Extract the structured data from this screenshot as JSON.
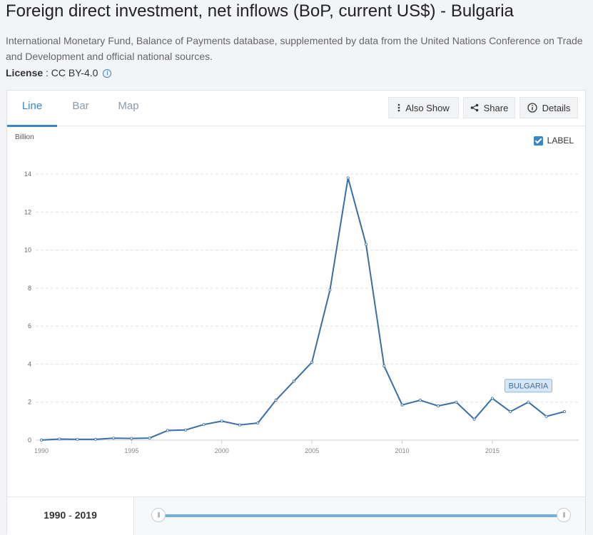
{
  "page": {
    "title": "Foreign direct investment, net inflows (BoP, current US$) - Bulgaria",
    "source": "International Monetary Fund, Balance of Payments database, supplemented by data from the United Nations Conference on Trade and Development and official national sources.",
    "license_label": "License",
    "license_value": " : CC BY-4.0"
  },
  "tabs": [
    "Line",
    "Bar",
    "Map"
  ],
  "active_tab": "Line",
  "toolbar": {
    "also_show": "Also Show",
    "share": "Share",
    "details": "Details"
  },
  "label_toggle": {
    "text": "LABEL",
    "checked": true
  },
  "footer": {
    "range_start": "1990",
    "range_sep": " - ",
    "range_end": "2019",
    "range_fraction": [
      0.0,
      1.0
    ]
  },
  "colors": {
    "line": "#3a6ea5",
    "accent": "#3a86c8",
    "grid": "#e0e0e0",
    "series_label_bg": "#d6e8f5"
  },
  "chart_data": {
    "type": "line",
    "title": "Foreign direct investment, net inflows (BoP, current US$) - Bulgaria",
    "ylabel": "Billion",
    "xlabel": "",
    "ylim": [
      0,
      14
    ],
    "xlim": [
      1990,
      2019
    ],
    "y_ticks": [
      "0",
      "2",
      "4",
      "6",
      "8",
      "10",
      "12",
      "14"
    ],
    "x_ticks": [
      "1990",
      "1995",
      "2000",
      "2005",
      "2010",
      "2015"
    ],
    "grid": true,
    "series": [
      {
        "name": "BULGARIA",
        "x": [
          1990,
          1991,
          1992,
          1993,
          1994,
          1995,
          1996,
          1997,
          1998,
          1999,
          2000,
          2001,
          2002,
          2003,
          2004,
          2005,
          2006,
          2007,
          2008,
          2009,
          2010,
          2011,
          2012,
          2013,
          2014,
          2015,
          2016,
          2017,
          2018,
          2019
        ],
        "values": [
          0.004,
          0.056,
          0.042,
          0.04,
          0.105,
          0.09,
          0.109,
          0.505,
          0.537,
          0.819,
          1.0,
          0.8,
          0.9,
          2.1,
          3.1,
          4.1,
          7.9,
          13.8,
          10.3,
          3.9,
          1.85,
          2.1,
          1.8,
          2.0,
          1.1,
          2.2,
          1.5,
          2.0,
          1.25,
          1.5
        ]
      }
    ]
  }
}
